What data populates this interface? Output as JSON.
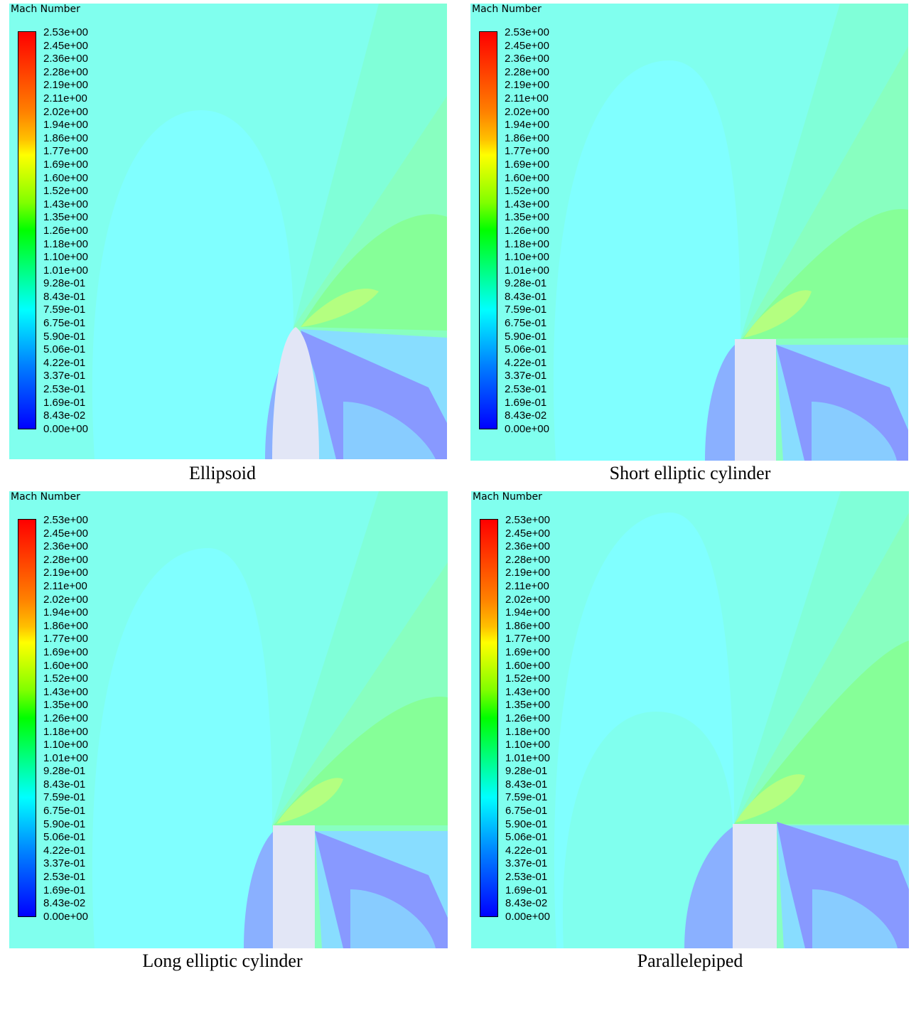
{
  "colorbar_title": "Mach Number",
  "colorbar_ticks": [
    "2.53e+00",
    "2.45e+00",
    "2.36e+00",
    "2.28e+00",
    "2.19e+00",
    "2.11e+00",
    "2.02e+00",
    "1.94e+00",
    "1.86e+00",
    "1.77e+00",
    "1.69e+00",
    "1.60e+00",
    "1.52e+00",
    "1.43e+00",
    "1.35e+00",
    "1.26e+00",
    "1.18e+00",
    "1.10e+00",
    "1.01e+00",
    "9.28e-01",
    "8.43e-01",
    "7.59e-01",
    "6.75e-01",
    "5.90e-01",
    "5.06e-01",
    "4.22e-01",
    "3.37e-01",
    "2.53e-01",
    "1.69e-01",
    "8.43e-02",
    "0.00e+00"
  ],
  "colors": {
    "background": "#80ffee",
    "subsonic_low": "#8080ff",
    "mid": "#80ffcc",
    "supersonic": "#88ff88",
    "body": "#e0e4f4"
  },
  "panels": [
    {
      "caption": "Ellipsoid",
      "body_shape": "ellipsoid"
    },
    {
      "caption": "Short elliptic cylinder",
      "body_shape": "short-cylinder"
    },
    {
      "caption": "Long elliptic cylinder",
      "body_shape": "long-cylinder"
    },
    {
      "caption": "Parallelepiped",
      "body_shape": "parallelepiped"
    }
  ]
}
